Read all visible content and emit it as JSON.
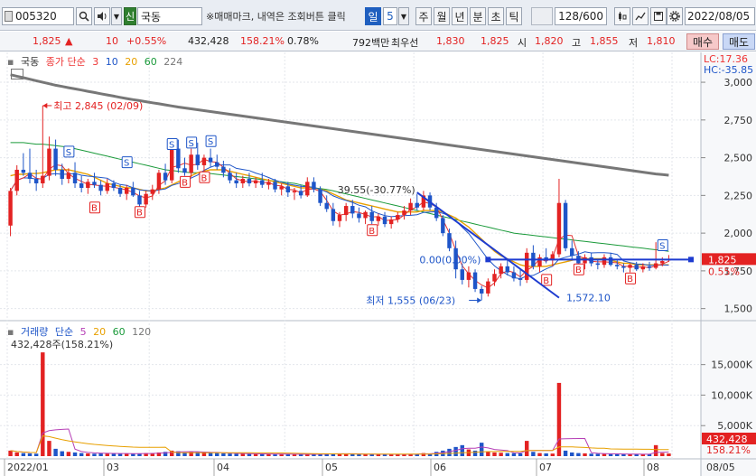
{
  "toolbar": {
    "stock_code": "005320",
    "stock_name": "국동",
    "sin_label": "신",
    "memo_text": "※매매마크, 내역은 조회버튼 클릭",
    "periods": [
      "일",
      "5",
      "주",
      "월",
      "년",
      "분",
      "초",
      "틱"
    ],
    "active_period": "일",
    "count_display": "128/600",
    "date": "2022/08/05",
    "icons": [
      "search-icon",
      "speaker-icon",
      "grid-icon",
      "crosshair-icon",
      "save-icon",
      "settings-icon"
    ]
  },
  "quote": {
    "price": "1,825",
    "change_arrow": "▲",
    "change": "10",
    "change_pct": "+0.55%",
    "volume": "432,428",
    "volume_ratio": "158.21%",
    "turnover": "0.78%",
    "trade_value": "792백만",
    "best_ask_label": "최우선",
    "best_ask": "1,830",
    "best_bid": "1,825",
    "open_label": "시",
    "open": "1,820",
    "high_label": "고",
    "high": "1,855",
    "low_label": "저",
    "low": "1,810",
    "buy_label": "매수",
    "sell_label": "매도"
  },
  "price_pane": {
    "name": "국동",
    "indicator_label": "종가 단순",
    "ma_periods": [
      "3",
      "10",
      "20",
      "60",
      "224"
    ],
    "lc": "LC:17.36",
    "hc": "HC:-35.85",
    "high_annotation": "최고 2,845 (02/09)",
    "low_annotation": "최저 1,555 (06/23)",
    "trend_annotation": "39.55(-30.77%)",
    "trend_end_label": "1,572.10",
    "hline_label": "0.00(0.00%)",
    "current_price_tag": "1,825",
    "current_pct_tag": "0.55%",
    "y_ticks": [
      "3,000",
      "2,750",
      "2,500",
      "2,250",
      "2,000",
      "1,750",
      "1,500"
    ]
  },
  "volume_pane": {
    "label": "거래량",
    "indicator_label": "단순",
    "ma_periods": [
      "5",
      "20",
      "60",
      "120"
    ],
    "current_volume": "432,428주(158.21%)",
    "y_ticks": [
      "15,000K",
      "10,000K",
      "5,000K"
    ],
    "current_tag": "432,428",
    "current_pct_tag": "158.21%"
  },
  "x_axis": {
    "labels": [
      "2022/01",
      "03",
      "04",
      "05",
      "06",
      "07",
      "08",
      "08/05"
    ]
  },
  "colors": {
    "up": "#e32222",
    "down": "#1e55c8",
    "ma3": "#e33333",
    "ma10": "#1e55c8",
    "ma20": "#e8a000",
    "ma60": "#1a9a3a",
    "ma224": "#777777",
    "vol_ma5": "#b63fb6",
    "vol_ma20": "#e8a000"
  },
  "chart_data": {
    "type": "candlestick",
    "ylim": [
      1450,
      3150
    ],
    "yticks": [
      3000,
      2750,
      2500,
      2250,
      2000,
      1750,
      1500
    ],
    "candles": [
      {
        "o": 2050,
        "h": 2300,
        "l": 1980,
        "c": 2280
      },
      {
        "o": 2280,
        "h": 2450,
        "l": 2250,
        "c": 2420
      },
      {
        "o": 2420,
        "h": 2530,
        "l": 2380,
        "c": 2400
      },
      {
        "o": 2400,
        "h": 2560,
        "l": 2330,
        "c": 2360
      },
      {
        "o": 2360,
        "h": 2420,
        "l": 2280,
        "c": 2330
      },
      {
        "o": 2330,
        "h": 2845,
        "l": 2300,
        "c": 2380
      },
      {
        "o": 2380,
        "h": 2640,
        "l": 2350,
        "c": 2560
      },
      {
        "o": 2560,
        "h": 2620,
        "l": 2380,
        "c": 2420
      },
      {
        "o": 2420,
        "h": 2460,
        "l": 2320,
        "c": 2360
      },
      {
        "o": 2360,
        "h": 2430,
        "l": 2330,
        "c": 2400
      },
      {
        "o": 2400,
        "h": 2470,
        "l": 2300,
        "c": 2330
      },
      {
        "o": 2330,
        "h": 2380,
        "l": 2270,
        "c": 2300
      },
      {
        "o": 2300,
        "h": 2360,
        "l": 2260,
        "c": 2340
      },
      {
        "o": 2340,
        "h": 2400,
        "l": 2300,
        "c": 2320
      },
      {
        "o": 2320,
        "h": 2350,
        "l": 2250,
        "c": 2280
      },
      {
        "o": 2280,
        "h": 2360,
        "l": 2260,
        "c": 2330
      },
      {
        "o": 2330,
        "h": 2350,
        "l": 2280,
        "c": 2300
      },
      {
        "o": 2300,
        "h": 2320,
        "l": 2240,
        "c": 2260
      },
      {
        "o": 2260,
        "h": 2320,
        "l": 2220,
        "c": 2300
      },
      {
        "o": 2300,
        "h": 2340,
        "l": 2240,
        "c": 2250
      },
      {
        "o": 2250,
        "h": 2280,
        "l": 2160,
        "c": 2190
      },
      {
        "o": 2190,
        "h": 2280,
        "l": 2170,
        "c": 2260
      },
      {
        "o": 2260,
        "h": 2320,
        "l": 2220,
        "c": 2290
      },
      {
        "o": 2290,
        "h": 2420,
        "l": 2260,
        "c": 2400
      },
      {
        "o": 2400,
        "h": 2460,
        "l": 2320,
        "c": 2350
      },
      {
        "o": 2350,
        "h": 2600,
        "l": 2330,
        "c": 2560
      },
      {
        "o": 2560,
        "h": 2620,
        "l": 2400,
        "c": 2430
      },
      {
        "o": 2430,
        "h": 2500,
        "l": 2380,
        "c": 2400
      },
      {
        "o": 2400,
        "h": 2560,
        "l": 2370,
        "c": 2520
      },
      {
        "o": 2520,
        "h": 2600,
        "l": 2420,
        "c": 2450
      },
      {
        "o": 2450,
        "h": 2520,
        "l": 2400,
        "c": 2500
      },
      {
        "o": 2500,
        "h": 2560,
        "l": 2440,
        "c": 2470
      },
      {
        "o": 2470,
        "h": 2520,
        "l": 2420,
        "c": 2440
      },
      {
        "o": 2440,
        "h": 2480,
        "l": 2370,
        "c": 2400
      },
      {
        "o": 2400,
        "h": 2430,
        "l": 2330,
        "c": 2350
      },
      {
        "o": 2350,
        "h": 2400,
        "l": 2300,
        "c": 2330
      },
      {
        "o": 2330,
        "h": 2380,
        "l": 2300,
        "c": 2360
      },
      {
        "o": 2360,
        "h": 2400,
        "l": 2310,
        "c": 2330
      },
      {
        "o": 2330,
        "h": 2370,
        "l": 2300,
        "c": 2350
      },
      {
        "o": 2350,
        "h": 2400,
        "l": 2300,
        "c": 2320
      },
      {
        "o": 2320,
        "h": 2360,
        "l": 2290,
        "c": 2340
      },
      {
        "o": 2340,
        "h": 2360,
        "l": 2270,
        "c": 2290
      },
      {
        "o": 2290,
        "h": 2330,
        "l": 2250,
        "c": 2310
      },
      {
        "o": 2310,
        "h": 2340,
        "l": 2240,
        "c": 2270
      },
      {
        "o": 2270,
        "h": 2300,
        "l": 2220,
        "c": 2280
      },
      {
        "o": 2280,
        "h": 2320,
        "l": 2230,
        "c": 2250
      },
      {
        "o": 2250,
        "h": 2370,
        "l": 2240,
        "c": 2340
      },
      {
        "o": 2340,
        "h": 2370,
        "l": 2270,
        "c": 2290
      },
      {
        "o": 2290,
        "h": 2310,
        "l": 2180,
        "c": 2200
      },
      {
        "o": 2200,
        "h": 2250,
        "l": 2140,
        "c": 2160
      },
      {
        "o": 2160,
        "h": 2200,
        "l": 2050,
        "c": 2080
      },
      {
        "o": 2080,
        "h": 2140,
        "l": 2040,
        "c": 2120
      },
      {
        "o": 2120,
        "h": 2200,
        "l": 2080,
        "c": 2180
      },
      {
        "o": 2180,
        "h": 2220,
        "l": 2100,
        "c": 2130
      },
      {
        "o": 2130,
        "h": 2170,
        "l": 2070,
        "c": 2100
      },
      {
        "o": 2100,
        "h": 2150,
        "l": 2060,
        "c": 2140
      },
      {
        "o": 2140,
        "h": 2180,
        "l": 2060,
        "c": 2080
      },
      {
        "o": 2080,
        "h": 2130,
        "l": 2050,
        "c": 2110
      },
      {
        "o": 2110,
        "h": 2140,
        "l": 2040,
        "c": 2060
      },
      {
        "o": 2060,
        "h": 2110,
        "l": 2030,
        "c": 2090
      },
      {
        "o": 2090,
        "h": 2140,
        "l": 2070,
        "c": 2120
      },
      {
        "o": 2120,
        "h": 2180,
        "l": 2090,
        "c": 2150
      },
      {
        "o": 2150,
        "h": 2230,
        "l": 2120,
        "c": 2200
      },
      {
        "o": 2200,
        "h": 2260,
        "l": 2150,
        "c": 2170
      },
      {
        "o": 2170,
        "h": 2280,
        "l": 2150,
        "c": 2250
      },
      {
        "o": 2250,
        "h": 2270,
        "l": 2150,
        "c": 2170
      },
      {
        "o": 2170,
        "h": 2200,
        "l": 2080,
        "c": 2100
      },
      {
        "o": 2100,
        "h": 2120,
        "l": 1980,
        "c": 2000
      },
      {
        "o": 2000,
        "h": 2030,
        "l": 1880,
        "c": 1900
      },
      {
        "o": 1900,
        "h": 1950,
        "l": 1700,
        "c": 1760
      },
      {
        "o": 1760,
        "h": 1800,
        "l": 1660,
        "c": 1690
      },
      {
        "o": 1690,
        "h": 1780,
        "l": 1640,
        "c": 1740
      },
      {
        "o": 1740,
        "h": 1760,
        "l": 1610,
        "c": 1630
      },
      {
        "o": 1630,
        "h": 1650,
        "l": 1555,
        "c": 1600
      },
      {
        "o": 1600,
        "h": 1700,
        "l": 1580,
        "c": 1680
      },
      {
        "o": 1680,
        "h": 1760,
        "l": 1650,
        "c": 1730
      },
      {
        "o": 1730,
        "h": 1800,
        "l": 1700,
        "c": 1780
      },
      {
        "o": 1780,
        "h": 1820,
        "l": 1720,
        "c": 1740
      },
      {
        "o": 1740,
        "h": 1780,
        "l": 1680,
        "c": 1700
      },
      {
        "o": 1700,
        "h": 1760,
        "l": 1650,
        "c": 1690
      },
      {
        "o": 1690,
        "h": 1900,
        "l": 1670,
        "c": 1870
      },
      {
        "o": 1870,
        "h": 1920,
        "l": 1760,
        "c": 1780
      },
      {
        "o": 1780,
        "h": 1860,
        "l": 1740,
        "c": 1840
      },
      {
        "o": 1840,
        "h": 1900,
        "l": 1800,
        "c": 1820
      },
      {
        "o": 1820,
        "h": 1880,
        "l": 1780,
        "c": 1860
      },
      {
        "o": 1860,
        "h": 2360,
        "l": 1840,
        "c": 2200
      },
      {
        "o": 2200,
        "h": 2220,
        "l": 1880,
        "c": 1900
      },
      {
        "o": 1900,
        "h": 1950,
        "l": 1820,
        "c": 1850
      },
      {
        "o": 1850,
        "h": 1880,
        "l": 1780,
        "c": 1800
      },
      {
        "o": 1800,
        "h": 1860,
        "l": 1760,
        "c": 1840
      },
      {
        "o": 1840,
        "h": 1870,
        "l": 1780,
        "c": 1800
      },
      {
        "o": 1800,
        "h": 1830,
        "l": 1760,
        "c": 1790
      },
      {
        "o": 1790,
        "h": 1860,
        "l": 1770,
        "c": 1840
      },
      {
        "o": 1840,
        "h": 1870,
        "l": 1780,
        "c": 1790
      },
      {
        "o": 1790,
        "h": 1820,
        "l": 1760,
        "c": 1780
      },
      {
        "o": 1780,
        "h": 1800,
        "l": 1740,
        "c": 1770
      },
      {
        "o": 1770,
        "h": 1800,
        "l": 1740,
        "c": 1790
      },
      {
        "o": 1790,
        "h": 1810,
        "l": 1750,
        "c": 1760
      },
      {
        "o": 1760,
        "h": 1800,
        "l": 1740,
        "c": 1780
      },
      {
        "o": 1780,
        "h": 1810,
        "l": 1750,
        "c": 1770
      },
      {
        "o": 1770,
        "h": 1940,
        "l": 1760,
        "c": 1800
      },
      {
        "o": 1800,
        "h": 1840,
        "l": 1780,
        "c": 1815
      },
      {
        "o": 1820,
        "h": 1855,
        "l": 1810,
        "c": 1825
      }
    ],
    "ma20": [
      2380,
      2390,
      2390,
      2395,
      2395,
      2400,
      2410,
      2420,
      2420,
      2420,
      2410,
      2400,
      2390,
      2370,
      2350,
      2330,
      2320,
      2310,
      2300,
      2300,
      2290,
      2280,
      2280,
      2290,
      2300,
      2320,
      2340,
      2360,
      2380,
      2400,
      2410,
      2420,
      2420,
      2420,
      2410,
      2400,
      2390,
      2380,
      2370,
      2360,
      2350,
      2340,
      2330,
      2320,
      2310,
      2300,
      2300,
      2300,
      2290,
      2280,
      2260,
      2240,
      2220,
      2210,
      2200,
      2190,
      2180,
      2170,
      2160,
      2150,
      2140,
      2140,
      2140,
      2140,
      2150,
      2150,
      2150,
      2140,
      2120,
      2100,
      2070,
      2040,
      2000,
      1960,
      1920,
      1880,
      1850,
      1830,
      1810,
      1790,
      1780,
      1780,
      1780,
      1780,
      1790,
      1800,
      1810,
      1820,
      1830,
      1830,
      1830,
      1830,
      1830,
      1820,
      1810,
      1800,
      1800,
      1790,
      1790,
      1790,
      1790,
      1790,
      1790
    ],
    "ma60": [
      2600,
      2600,
      2600,
      2595,
      2590,
      2590,
      2585,
      2580,
      2575,
      2570,
      2560,
      2550,
      2540,
      2530,
      2520,
      2510,
      2500,
      2490,
      2480,
      2470,
      2460,
      2450,
      2440,
      2430,
      2420,
      2415,
      2410,
      2405,
      2400,
      2400,
      2400,
      2395,
      2390,
      2385,
      2380,
      2375,
      2370,
      2365,
      2360,
      2355,
      2350,
      2345,
      2340,
      2335,
      2330,
      2320,
      2310,
      2300,
      2295,
      2290,
      2280,
      2270,
      2260,
      2250,
      2240,
      2230,
      2220,
      2210,
      2200,
      2190,
      2180,
      2170,
      2160,
      2150,
      2140,
      2130,
      2120,
      2110,
      2100,
      2090,
      2080,
      2070,
      2060,
      2050,
      2040,
      2030,
      2020,
      2010,
      2000,
      1995,
      1990,
      1985,
      1980,
      1975,
      1970,
      1965,
      1960,
      1955,
      1950,
      1945,
      1940,
      1935,
      1930,
      1925,
      1920,
      1915,
      1910,
      1905,
      1900,
      1895,
      1890,
      1885,
      1880
    ],
    "ma224": [
      3050,
      3040,
      3030,
      3020,
      3010,
      3000,
      2990,
      2980,
      2972,
      2964,
      2956,
      2948,
      2940,
      2932,
      2924,
      2916,
      2908,
      2900,
      2892,
      2885,
      2878,
      2871,
      2864,
      2857,
      2850,
      2843,
      2836,
      2830,
      2824,
      2818,
      2812,
      2806,
      2800,
      2794,
      2788,
      2782,
      2776,
      2770,
      2764,
      2758,
      2752,
      2746,
      2740,
      2734,
      2728,
      2722,
      2716,
      2710,
      2704,
      2698,
      2692,
      2686,
      2680,
      2674,
      2668,
      2662,
      2656,
      2650,
      2644,
      2638,
      2632,
      2626,
      2620,
      2614,
      2608,
      2602,
      2596,
      2590,
      2584,
      2578,
      2572,
      2566,
      2560,
      2554,
      2548,
      2542,
      2536,
      2530,
      2524,
      2518,
      2512,
      2506,
      2500,
      2494,
      2488,
      2482,
      2476,
      2470,
      2464,
      2458,
      2452,
      2446,
      2440,
      2434,
      2428,
      2422,
      2416,
      2410,
      2404,
      2398,
      2392,
      2388,
      2384
    ],
    "volumes": [
      900,
      600,
      500,
      450,
      400,
      17000,
      2500,
      1200,
      800,
      700,
      600,
      500,
      450,
      400,
      500,
      450,
      400,
      380,
      420,
      400,
      450,
      500,
      450,
      600,
      700,
      900,
      800,
      600,
      700,
      650,
      600,
      550,
      500,
      450,
      420,
      400,
      380,
      360,
      350,
      340,
      330,
      320,
      310,
      300,
      300,
      290,
      300,
      320,
      350,
      400,
      450,
      380,
      360,
      340,
      320,
      300,
      310,
      300,
      290,
      280,
      300,
      320,
      340,
      360,
      500,
      420,
      700,
      900,
      1200,
      1500,
      1800,
      1100,
      900,
      2200,
      700,
      600,
      550,
      500,
      480,
      450,
      2500,
      700,
      500,
      450,
      420,
      12000,
      900,
      600,
      500,
      450,
      400,
      380,
      360,
      350,
      340,
      330,
      320,
      300,
      300,
      290,
      1800,
      500,
      432
    ],
    "vol_ylim": [
      0,
      18500
    ],
    "vol_yticks": [
      15000,
      10000,
      5000
    ]
  }
}
